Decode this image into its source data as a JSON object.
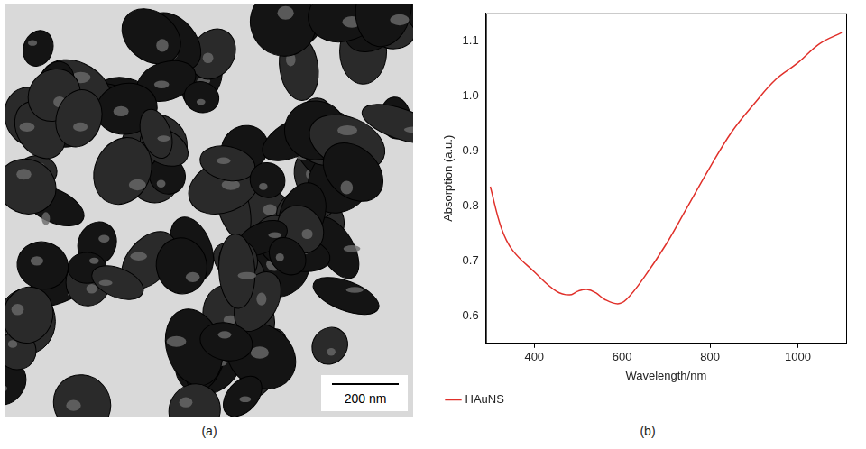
{
  "micrograph": {
    "panel_label": "(a)",
    "scale_bar": "200 nm"
  },
  "chart_data": {
    "panel_label": "(b)",
    "type": "line",
    "x_label": "Wavelength/nm",
    "y_label": "Absorption (a.u.)",
    "x": [
      300,
      325,
      350,
      400,
      450,
      480,
      500,
      520,
      540,
      560,
      590,
      610,
      650,
      700,
      750,
      800,
      850,
      900,
      950,
      1000,
      1050,
      1100
    ],
    "series": [
      {
        "name": "HAuNS",
        "color": "#e0302a",
        "values": [
          0.835,
          0.76,
          0.72,
          0.68,
          0.645,
          0.638,
          0.645,
          0.648,
          0.642,
          0.63,
          0.622,
          0.63,
          0.67,
          0.73,
          0.8,
          0.87,
          0.935,
          0.985,
          1.03,
          1.06,
          1.095,
          1.115
        ]
      }
    ],
    "xlim": [
      290,
      1110
    ],
    "xticks": [
      400,
      600,
      800,
      1000
    ],
    "ylim": [
      0.55,
      1.15
    ],
    "yticks": [
      0.6,
      0.7,
      0.8,
      0.9,
      {
        "value": 1,
        "label": "1.0"
      },
      1.1
    ],
    "grid": false,
    "legend": "bottom"
  }
}
